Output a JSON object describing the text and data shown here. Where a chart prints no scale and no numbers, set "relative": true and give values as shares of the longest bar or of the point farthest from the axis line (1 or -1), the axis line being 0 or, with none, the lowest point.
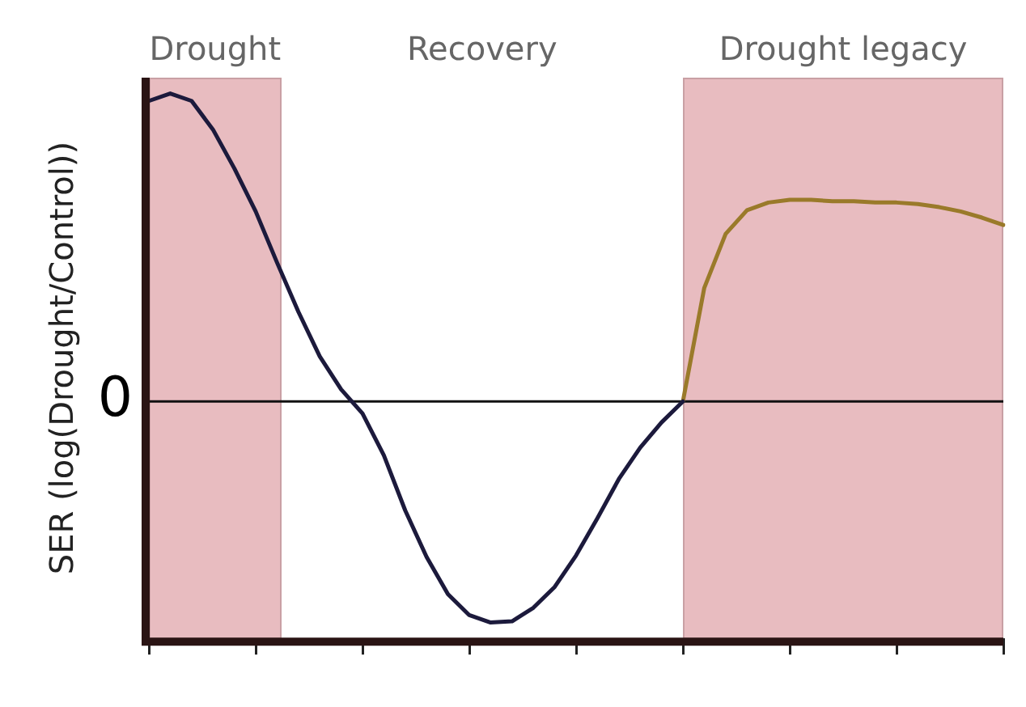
{
  "chart_data": {
    "type": "line",
    "relative": true,
    "ylabel": "SER (log(Drought/Control))",
    "categories": [
      null,
      null,
      null,
      null,
      null,
      null,
      null,
      null,
      null,
      null,
      null,
      null,
      null,
      null,
      null,
      null,
      null,
      null,
      null,
      null,
      null,
      null,
      null,
      null,
      null,
      null,
      null,
      null,
      null,
      null,
      null,
      null,
      null,
      null,
      null,
      null,
      null,
      null,
      null,
      null,
      null
    ],
    "grid": false,
    "legend": false,
    "marker": "none",
    "line_style": "solid",
    "series": [
      {
        "color": "#1c1a3c",
        "values": [
          0.976,
          1,
          0.976,
          0.883,
          0.757,
          0.617,
          0.451,
          0.291,
          0.146,
          0.039,
          -0.039,
          -0.175,
          -0.354,
          -0.505,
          -0.626,
          -0.694,
          -0.718,
          -0.714,
          -0.67,
          -0.602,
          -0.5,
          -0.379,
          -0.252,
          -0.15,
          -0.068,
          0,
          null,
          null,
          null,
          null,
          null,
          null,
          null,
          null,
          null,
          null,
          null,
          null,
          null,
          null,
          null
        ]
      },
      {
        "color": "#9a7a2a",
        "values": [
          null,
          null,
          null,
          null,
          null,
          null,
          null,
          null,
          null,
          null,
          null,
          null,
          null,
          null,
          null,
          null,
          null,
          null,
          null,
          null,
          null,
          null,
          null,
          null,
          null,
          0,
          0.369,
          0.544,
          0.621,
          0.646,
          0.655,
          0.655,
          0.65,
          0.65,
          0.646,
          0.646,
          0.641,
          0.631,
          0.617,
          0.597,
          0.573
        ]
      }
    ],
    "annotations": [
      "Drought",
      "Recovery",
      "Drought legacy",
      "0"
    ]
  }
}
